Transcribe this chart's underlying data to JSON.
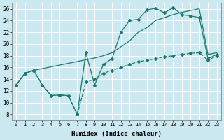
{
  "xlabel": "Humidex (Indice chaleur)",
  "bg_color": "#cce8f0",
  "grid_color": "#ffffff",
  "line_color": "#1a7a6e",
  "ylim": [
    7,
    27
  ],
  "xlim": [
    -0.5,
    23.5
  ],
  "yticks": [
    8,
    10,
    12,
    14,
    16,
    18,
    20,
    22,
    24,
    26
  ],
  "xticks": [
    0,
    1,
    2,
    3,
    4,
    5,
    6,
    7,
    8,
    9,
    10,
    11,
    12,
    13,
    14,
    15,
    16,
    17,
    18,
    19,
    20,
    21,
    22,
    23
  ],
  "line_smooth_x": [
    0,
    1,
    2,
    3,
    4,
    5,
    6,
    7,
    8,
    9,
    10,
    11,
    12,
    13,
    14,
    15,
    16,
    17,
    18,
    19,
    20,
    21,
    22,
    23
  ],
  "line_smooth_y": [
    13,
    15,
    15.5,
    15.8,
    16.1,
    16.4,
    16.7,
    17.0,
    17.3,
    17.6,
    18.0,
    18.5,
    19.5,
    20.5,
    22,
    22.8,
    24,
    24.5,
    25.0,
    25.4,
    25.7,
    26.0,
    18.2,
    18.5
  ],
  "line_marker_x": [
    0,
    1,
    2,
    3,
    4,
    5,
    6,
    7,
    8,
    9,
    10,
    11,
    12,
    13,
    14,
    15,
    16,
    17,
    18,
    19,
    20,
    21,
    22,
    23
  ],
  "line_marker_y": [
    13.0,
    15.0,
    15.5,
    13.0,
    11.2,
    11.3,
    11.2,
    8.0,
    18.5,
    13.0,
    16.5,
    17.5,
    22.0,
    24.0,
    24.2,
    25.8,
    26.1,
    25.3,
    26.2,
    25.0,
    24.8,
    24.5,
    17.5,
    18.2
  ],
  "line_dashed_x": [
    0,
    1,
    2,
    3,
    4,
    5,
    6,
    7,
    8,
    9,
    10,
    11,
    12,
    13,
    14,
    15,
    16,
    17,
    18,
    19,
    20,
    21,
    22,
    23
  ],
  "line_dashed_y": [
    13.0,
    15.0,
    15.5,
    13.0,
    11.2,
    11.3,
    11.2,
    8.0,
    13.5,
    14.0,
    15.0,
    15.5,
    16.0,
    16.5,
    17.0,
    17.2,
    17.5,
    17.8,
    18.0,
    18.2,
    18.4,
    18.5,
    17.2,
    18.0
  ]
}
